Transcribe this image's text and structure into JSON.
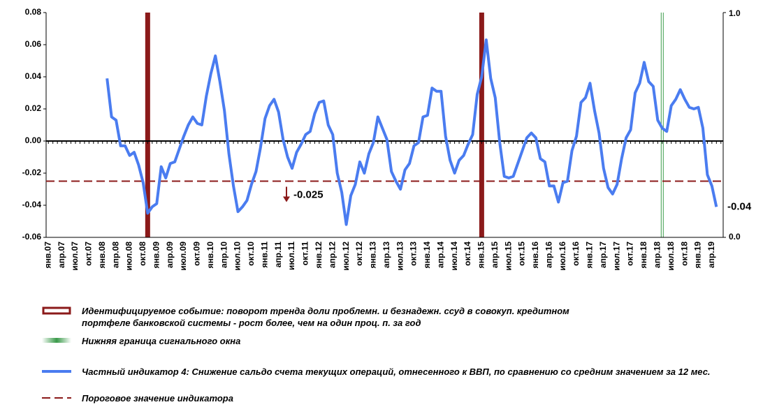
{
  "chart_data": {
    "type": "line",
    "categories": [
      "янв.07",
      null,
      null,
      "апр.07",
      null,
      null,
      "июл.07",
      null,
      null,
      "окт.07",
      null,
      null,
      "янв.08",
      null,
      null,
      "апр.08",
      null,
      null,
      "июл.08",
      null,
      null,
      "окт.08",
      null,
      null,
      "янв.09",
      null,
      null,
      "апр.09",
      null,
      null,
      "июл.09",
      null,
      null,
      "окт.09",
      null,
      null,
      "янв.10",
      null,
      null,
      "апр.10",
      null,
      null,
      "июл.10",
      null,
      null,
      "окт.10",
      null,
      null,
      "янв.11",
      null,
      null,
      "апр.11",
      null,
      null,
      "июл.11",
      null,
      null,
      "окт.11",
      null,
      null,
      "янв.12",
      null,
      null,
      "апр.12",
      null,
      null,
      "июл.12",
      null,
      null,
      "окт.12",
      null,
      null,
      "янв.13",
      null,
      null,
      "апр.13",
      null,
      null,
      "июл.13",
      null,
      null,
      "окт.13",
      null,
      null,
      "янв.14",
      null,
      null,
      "апр.14",
      null,
      null,
      "июл.14",
      null,
      null,
      "окт.14",
      null,
      null,
      "янв.15",
      null,
      null,
      "апр.15",
      null,
      null,
      "июл.15",
      null,
      null,
      "окт.15",
      null,
      null,
      "янв.16",
      null,
      null,
      "апр.16",
      null,
      null,
      "июл.16",
      null,
      null,
      "окт.16",
      null,
      null,
      "янв.17",
      null,
      null,
      "апр.17",
      null,
      null,
      "июл.17",
      null,
      null,
      "окт.17",
      null,
      null,
      "янв.18",
      null,
      null,
      "апр.18",
      null,
      null,
      "июл.18",
      null,
      null,
      "окт.18",
      null,
      null,
      "янв.19",
      null,
      null,
      "апр.19",
      null,
      null
    ],
    "series": [
      {
        "name": "Частный индикатор 4: Снижение сальдо счета текущих операций, отнесенного к ВВП, по сравнению со средним значением  за 12 мес.",
        "color": "#4a7cf0",
        "values": [
          null,
          null,
          null,
          null,
          null,
          null,
          null,
          null,
          null,
          null,
          null,
          null,
          null,
          0.039,
          0.015,
          0.013,
          -0.003,
          -0.003,
          -0.009,
          -0.007,
          -0.015,
          -0.026,
          -0.045,
          -0.041,
          -0.039,
          -0.016,
          -0.023,
          -0.014,
          -0.013,
          -0.005,
          0.003,
          0.01,
          0.015,
          0.011,
          0.01,
          0.028,
          0.042,
          0.053,
          0.037,
          0.019,
          -0.008,
          -0.028,
          -0.044,
          -0.041,
          -0.037,
          -0.027,
          -0.019,
          -0.004,
          0.014,
          0.022,
          0.026,
          0.018,
          0.001,
          -0.01,
          -0.017,
          -0.007,
          -0.002,
          0.004,
          0.006,
          0.017,
          0.024,
          0.025,
          0.01,
          0.004,
          -0.02,
          -0.032,
          -0.052,
          -0.034,
          -0.027,
          -0.013,
          -0.02,
          -0.008,
          -0.001,
          0.015,
          0.008,
          0.001,
          -0.019,
          -0.025,
          -0.03,
          -0.018,
          -0.014,
          -0.003,
          -0.001,
          0.015,
          0.016,
          0.033,
          0.031,
          0.031,
          0.003,
          -0.012,
          -0.02,
          -0.012,
          -0.009,
          -0.002,
          0.004,
          0.029,
          0.04,
          0.063,
          0.039,
          0.027,
          -0.001,
          -0.022,
          -0.023,
          -0.022,
          -0.014,
          -0.006,
          0.002,
          0.005,
          0.002,
          -0.011,
          -0.013,
          -0.028,
          -0.028,
          -0.038,
          -0.026,
          -0.025,
          -0.006,
          0.003,
          0.024,
          0.027,
          0.036,
          0.019,
          0.005,
          -0.017,
          -0.029,
          -0.033,
          -0.027,
          -0.011,
          0.002,
          0.007,
          0.03,
          0.036,
          0.049,
          0.037,
          0.034,
          0.013,
          0.008,
          0.006,
          0.022,
          0.026,
          0.032,
          0.026,
          0.021,
          0.02,
          0.021,
          0.008,
          -0.021,
          -0.028,
          -0.041,
          null
        ],
        "value_labels": [
          null,
          null,
          null,
          null,
          null,
          null,
          null,
          null,
          null,
          null,
          null,
          null,
          null,
          null,
          null,
          null,
          null,
          null,
          null,
          null,
          null,
          null,
          null,
          null,
          null,
          null,
          null,
          null,
          null,
          null,
          null,
          null,
          null,
          null,
          null,
          null,
          null,
          null,
          null,
          null,
          null,
          null,
          null,
          null,
          null,
          null,
          null,
          null,
          null,
          null,
          null,
          null,
          null,
          null,
          null,
          null,
          null,
          null,
          null,
          null,
          null,
          null,
          null,
          null,
          null,
          null,
          null,
          null,
          null,
          null,
          null,
          null,
          null,
          null,
          null,
          null,
          null,
          null,
          null,
          null,
          null,
          null,
          null,
          null,
          null,
          null,
          null,
          null,
          null,
          null,
          null,
          null,
          null,
          null,
          null,
          null,
          null,
          null,
          null,
          null,
          null,
          null,
          null,
          null,
          null,
          null,
          null,
          null,
          null,
          null,
          null,
          null,
          null,
          null,
          null,
          null,
          null,
          null,
          null,
          null,
          null,
          null,
          null,
          null,
          null,
          null,
          null,
          null,
          null,
          null,
          null,
          null,
          null,
          null,
          null,
          null,
          null,
          null,
          null,
          null,
          null,
          null,
          null,
          null,
          null,
          null,
          null,
          null,
          "-0.04",
          null
        ]
      }
    ],
    "threshold": {
      "name": "Пороговое значение  индикатора",
      "value": -0.025,
      "color": "#8b1a1a"
    },
    "events": {
      "name": "Идентифицируемое  событие: поворот тренда доли проблемн. и безнадежн. ссуд  в совокуп. кредитном портфеле банковской системы  - рост более, чем  на один проц. п. за год",
      "color": "#8b1a1a",
      "at": [
        22,
        96
      ]
    },
    "window": {
      "name": "Нижняя граница сигнального окна",
      "color": "#3a9a4a",
      "at": 136
    },
    "ylim": [
      -0.06,
      0.08
    ],
    "yticks": [
      -0.06,
      -0.04,
      -0.02,
      {
        "value": 0,
        "label": "0.00"
      },
      0.02,
      0.04,
      0.06,
      0.08
    ],
    "y2lim": [
      0,
      1
    ],
    "y2ticks": [
      {
        "value": 0,
        "label": "0.0"
      },
      {
        "value": 1,
        "label": "1.0"
      }
    ],
    "grid": false
  }
}
